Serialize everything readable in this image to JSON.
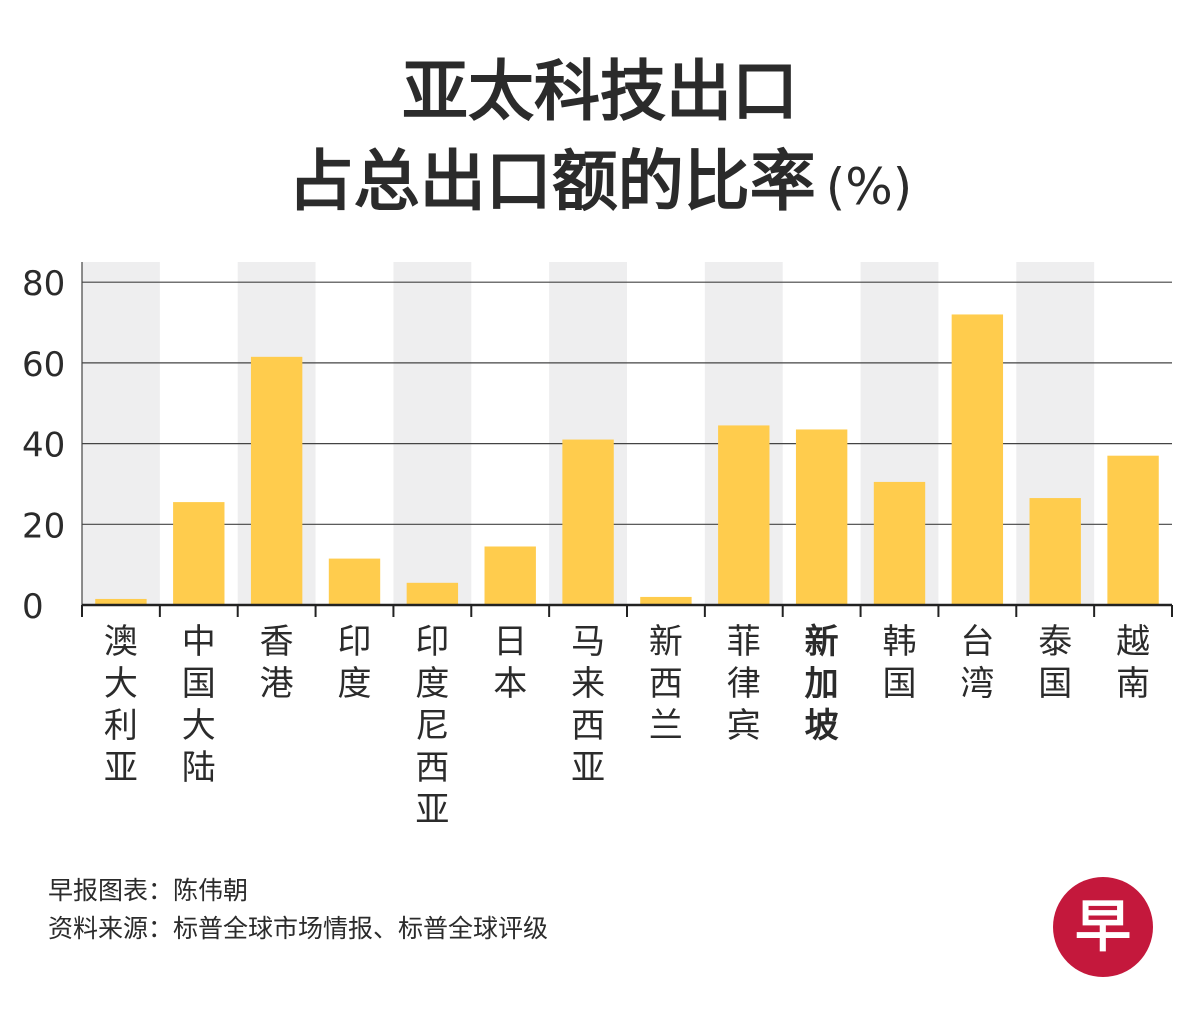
{
  "title": {
    "line1": "亚太科技出口",
    "line2": "占总出口额的比率",
    "unit": "(%)"
  },
  "footer": {
    "credit": "早报图表：陈伟朝",
    "source": "资料来源：标普全球市场情报、标普全球评级"
  },
  "logo": {
    "text": "早",
    "icon": "zaobao-logo"
  },
  "colors": {
    "bar": "#FFCC4D",
    "shade": "#EEEEEF",
    "grid": "#444444",
    "text": "#2b2b2b",
    "logo": "#C4183C"
  },
  "chart_data": {
    "type": "bar",
    "categories": [
      "澳大利亚",
      "中国大陆",
      "香港",
      "印度",
      "印度尼西亚",
      "日本",
      "马来西亚",
      "新西兰",
      "菲律宾",
      "新加坡",
      "韩国",
      "台湾",
      "泰国",
      "越南"
    ],
    "values": [
      1.5,
      25.5,
      61.5,
      11.5,
      5.5,
      14.5,
      41,
      2,
      44.5,
      43.5,
      30.5,
      72,
      26.5,
      37
    ],
    "highlight": "新加坡",
    "yticks": [
      0,
      20,
      40,
      60,
      80
    ],
    "ylim": [
      0,
      85
    ],
    "grid": true,
    "alternating_shading": true
  }
}
